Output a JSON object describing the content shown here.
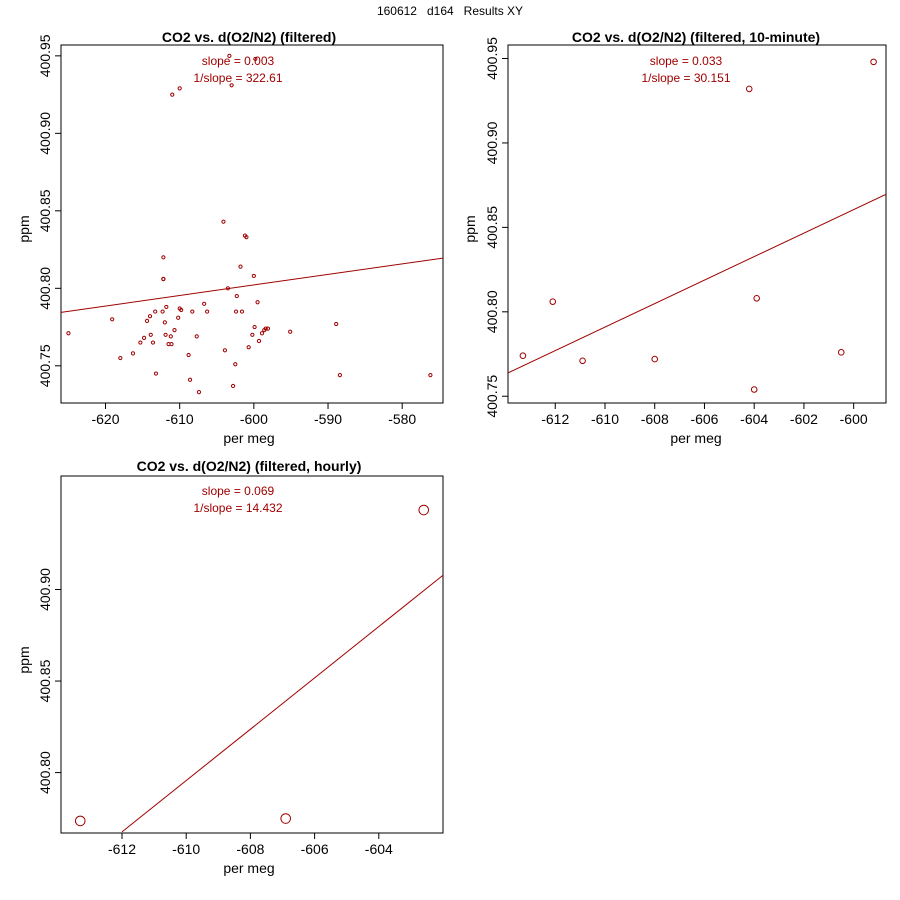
{
  "header": {
    "title": "160612   d164   Results XY"
  },
  "colors": {
    "series": "#a00000",
    "axis": "#000000",
    "background": "#ffffff"
  },
  "chart_data": [
    {
      "type": "scatter",
      "title": "CO2 vs. d(O2/N2) (filtered)",
      "xlabel": "per meg",
      "ylabel": "ppm",
      "xlim": [
        -626,
        -574.5
      ],
      "ylim": [
        400.726,
        400.957
      ],
      "xticks": [
        -620,
        -610,
        -600,
        -590,
        -580
      ],
      "yticks": [
        400.75,
        400.8,
        400.85,
        400.9,
        400.95
      ],
      "xtick_labels": [
        "-620",
        "-610",
        "-600",
        "-590",
        "-580"
      ],
      "ytick_labels": [
        "400.75",
        "400.80",
        "400.85",
        "400.90",
        "400.95"
      ],
      "marker_size": "small",
      "points": [
        [
          -625.0,
          400.771
        ],
        [
          -619.1,
          400.78
        ],
        [
          -618.0,
          400.755
        ],
        [
          -616.3,
          400.758
        ],
        [
          -615.3,
          400.765
        ],
        [
          -614.8,
          400.768
        ],
        [
          -614.4,
          400.779
        ],
        [
          -614.0,
          400.782
        ],
        [
          -613.9,
          400.77
        ],
        [
          -613.6,
          400.765
        ],
        [
          -613.3,
          400.785
        ],
        [
          -613.2,
          400.745
        ],
        [
          -612.3,
          400.785
        ],
        [
          -612.2,
          400.806
        ],
        [
          -612.2,
          400.82
        ],
        [
          -612.2,
          400.806
        ],
        [
          -612.0,
          400.778
        ],
        [
          -611.9,
          400.77
        ],
        [
          -611.8,
          400.788
        ],
        [
          -611.5,
          400.764
        ],
        [
          -611.2,
          400.769
        ],
        [
          -611.1,
          400.764
        ],
        [
          -611.0,
          400.925
        ],
        [
          -610.7,
          400.773
        ],
        [
          -610.2,
          400.781
        ],
        [
          -610.0,
          400.787
        ],
        [
          -610.0,
          400.929
        ],
        [
          -609.8,
          400.786
        ],
        [
          -608.8,
          400.757
        ],
        [
          -608.6,
          400.741
        ],
        [
          -608.3,
          400.785
        ],
        [
          -607.7,
          400.769
        ],
        [
          -607.4,
          400.733
        ],
        [
          -606.7,
          400.79
        ],
        [
          -606.3,
          400.785
        ],
        [
          -604.1,
          400.843
        ],
        [
          -603.9,
          400.76
        ],
        [
          -603.5,
          400.8
        ],
        [
          -603.3,
          400.95
        ],
        [
          -603.0,
          400.931
        ],
        [
          -602.8,
          400.737
        ],
        [
          -602.5,
          400.751
        ],
        [
          -602.4,
          400.785
        ],
        [
          -602.3,
          400.795
        ],
        [
          -601.8,
          400.814
        ],
        [
          -601.6,
          400.785
        ],
        [
          -601.2,
          400.834
        ],
        [
          -601.0,
          400.833
        ],
        [
          -600.7,
          400.762
        ],
        [
          -600.2,
          400.77
        ],
        [
          -600.0,
          400.808
        ],
        [
          -599.9,
          400.775
        ],
        [
          -599.8,
          400.948
        ],
        [
          -599.5,
          400.791
        ],
        [
          -599.3,
          400.766
        ],
        [
          -598.9,
          400.771
        ],
        [
          -598.6,
          400.773
        ],
        [
          -598.4,
          400.774
        ],
        [
          -598.1,
          400.774
        ],
        [
          -595.1,
          400.772
        ],
        [
          -588.9,
          400.777
        ],
        [
          -588.4,
          400.744
        ],
        [
          -576.2,
          400.744
        ]
      ],
      "fit_line": {
        "x": [
          -626,
          -574.5
        ],
        "y": [
          400.7845,
          400.8195
        ]
      },
      "annotations": [
        "slope = 0.003",
        "1/slope = 322.61"
      ]
    },
    {
      "type": "scatter",
      "title": "CO2 vs. d(O2/N2) (filtered, 10-minute)",
      "xlabel": "per meg",
      "ylabel": "ppm",
      "xlim": [
        -613.9,
        -598.7
      ],
      "ylim": [
        400.746,
        400.958
      ],
      "xticks": [
        -612,
        -610,
        -608,
        -606,
        -604,
        -602,
        -600
      ],
      "yticks": [
        400.75,
        400.8,
        400.85,
        400.9,
        400.95
      ],
      "xtick_labels": [
        "-612",
        "-610",
        "-608",
        "-606",
        "-604",
        "-602",
        "-600"
      ],
      "ytick_labels": [
        "400.75",
        "400.80",
        "400.85",
        "400.90",
        "400.95"
      ],
      "marker_size": "medium",
      "points": [
        [
          -613.3,
          400.774
        ],
        [
          -612.1,
          400.806
        ],
        [
          -610.9,
          400.771
        ],
        [
          -608.0,
          400.772
        ],
        [
          -604.2,
          400.932
        ],
        [
          -604.0,
          400.754
        ],
        [
          -603.9,
          400.808
        ],
        [
          -600.5,
          400.776
        ],
        [
          -599.2,
          400.948
        ]
      ],
      "fit_line": {
        "x": [
          -613.9,
          -598.7
        ],
        "y": [
          400.7638,
          400.8696
        ]
      },
      "annotations": [
        "slope = 0.033",
        "1/slope = 30.151"
      ]
    },
    {
      "type": "scatter",
      "title": "CO2 vs. d(O2/N2) (filtered, hourly)",
      "xlabel": "per meg",
      "ylabel": "ppm",
      "xlim": [
        -613.9,
        -602.0
      ],
      "ylim": [
        400.767,
        400.962
      ],
      "xticks": [
        -612,
        -610,
        -608,
        -606,
        -604
      ],
      "yticks": [
        400.8,
        400.85,
        400.9
      ],
      "xtick_labels": [
        "-612",
        "-610",
        "-608",
        "-606",
        "-604"
      ],
      "ytick_labels": [
        "400.80",
        "400.85",
        "400.90"
      ],
      "marker_size": "large",
      "points": [
        [
          -613.3,
          400.7736
        ],
        [
          -606.9,
          400.7749
        ],
        [
          -602.6,
          400.9434
        ]
      ],
      "fit_line": {
        "x": [
          -612.0,
          -602.0
        ],
        "y": [
          400.7676,
          400.9078
        ]
      },
      "annotations": [
        "slope = 0.069",
        "1/slope = 14.432"
      ]
    }
  ]
}
